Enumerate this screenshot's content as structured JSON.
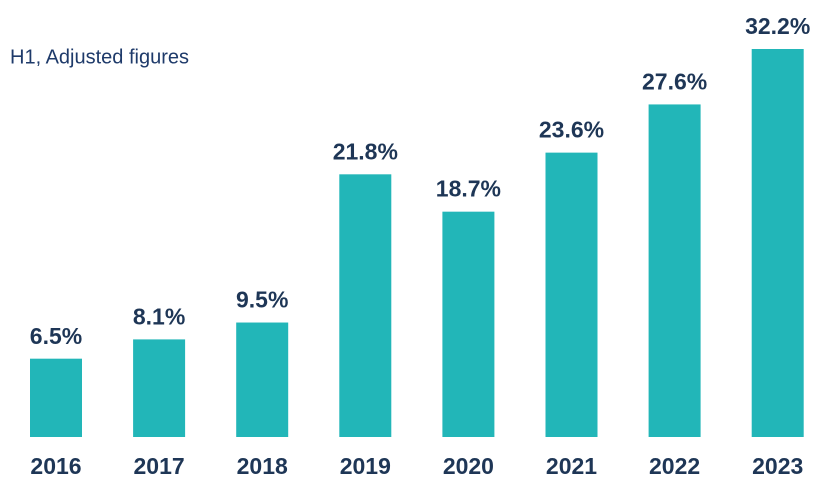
{
  "chart_data": {
    "type": "bar",
    "subtitle": "H1, Adjusted figures",
    "categories": [
      "2016",
      "2017",
      "2018",
      "2019",
      "2020",
      "2021",
      "2022",
      "2023"
    ],
    "values": [
      6.5,
      8.1,
      9.5,
      21.8,
      18.7,
      23.6,
      27.6,
      32.2
    ],
    "value_labels": [
      "6.5%",
      "8.1%",
      "9.5%",
      "21.8%",
      "18.7%",
      "23.6%",
      "27.6%",
      "32.2%"
    ],
    "color": "#22b6b8"
  }
}
